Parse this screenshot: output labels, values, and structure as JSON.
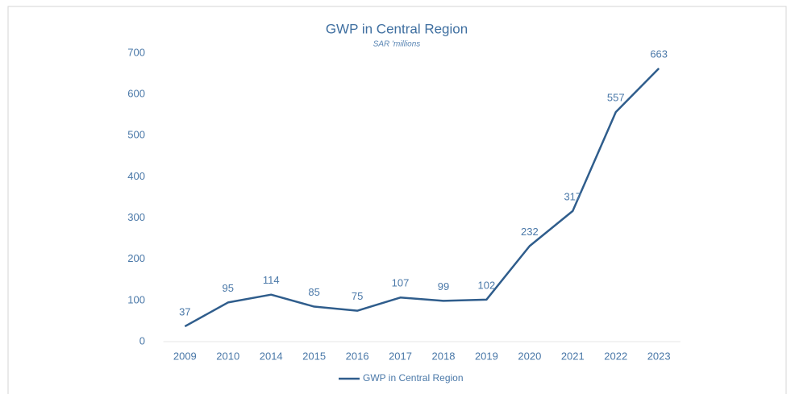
{
  "chart_data": {
    "type": "line",
    "title": "GWP in Central Region",
    "subtitle": "SAR 'millions",
    "categories": [
      "2009",
      "2010",
      "2014",
      "2015",
      "2016",
      "2017",
      "2018",
      "2019",
      "2020",
      "2021",
      "2022",
      "2023"
    ],
    "series": [
      {
        "name": "GWP in Central Region",
        "color": "#2f5d8c",
        "values": [
          37,
          95,
          114,
          85,
          75,
          107,
          99,
          102,
          232,
          317,
          557,
          663
        ]
      }
    ],
    "ylim": [
      0,
      700
    ],
    "yticks": [
      0,
      100,
      200,
      300,
      400,
      500,
      600,
      700
    ],
    "grid": false,
    "legend": "bottom",
    "data_labels": true
  }
}
